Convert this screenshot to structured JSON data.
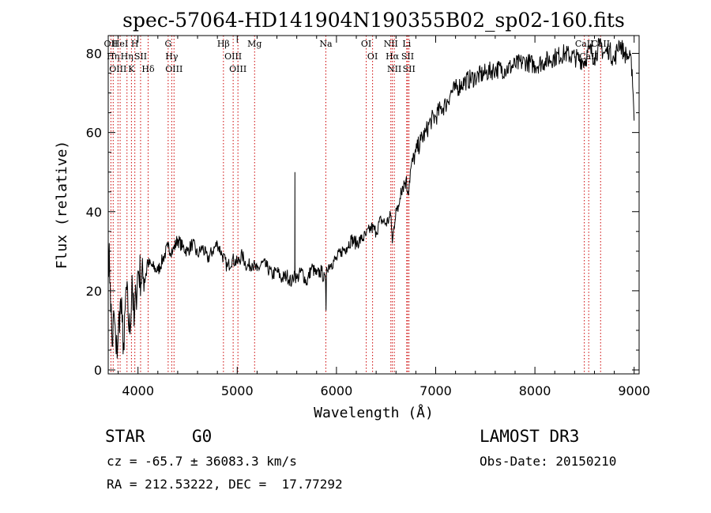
{
  "chart_data": {
    "type": "line",
    "title": "spec-57064-HD141904N190355B02_sp02-160.fits",
    "xlabel": "Wavelength (Å)",
    "ylabel": "Flux (relative)",
    "xlim": [
      3700,
      9050
    ],
    "ylim": [
      -1,
      84.5
    ],
    "xticks": [
      4000,
      5000,
      6000,
      7000,
      8000,
      9000
    ],
    "yticks": [
      0,
      20,
      40,
      60,
      80
    ],
    "series": [
      {
        "name": "spectrum",
        "x": [
          3700,
          3720,
          3740,
          3760,
          3780,
          3800,
          3820,
          3840,
          3860,
          3880,
          3900,
          3920,
          3940,
          3960,
          3980,
          4000,
          4050,
          4100,
          4150,
          4200,
          4250,
          4300,
          4350,
          4400,
          4450,
          4500,
          4550,
          4600,
          4650,
          4700,
          4750,
          4800,
          4850,
          4900,
          4950,
          5000,
          5050,
          5100,
          5150,
          5200,
          5250,
          5300,
          5350,
          5400,
          5450,
          5500,
          5550,
          5580,
          5581,
          5582,
          5583,
          5600,
          5650,
          5700,
          5750,
          5800,
          5850,
          5890,
          5895,
          5900,
          5950,
          6000,
          6050,
          6100,
          6150,
          6200,
          6250,
          6300,
          6350,
          6400,
          6450,
          6500,
          6550,
          6563,
          6600,
          6620,
          6650,
          6700,
          6720,
          6750,
          6800,
          6850,
          6900,
          6950,
          7000,
          7050,
          7100,
          7150,
          7200,
          7250,
          7300,
          7400,
          7500,
          7600,
          7700,
          7800,
          7900,
          8000,
          8100,
          8200,
          8300,
          8400,
          8500,
          8550,
          8600,
          8650,
          8700,
          8750,
          8800,
          8850,
          8900,
          8950,
          8980,
          9000
        ],
        "values": [
          32,
          22,
          6,
          14,
          4,
          8,
          17,
          12,
          5,
          21,
          14,
          9,
          24,
          11,
          19,
          25,
          23,
          27,
          26,
          25,
          28,
          31,
          30,
          33,
          31,
          30,
          32,
          29,
          31,
          28,
          30,
          32,
          29,
          26,
          28,
          27,
          29,
          26,
          27,
          25,
          27,
          26,
          24,
          25,
          23,
          24,
          22,
          25,
          50,
          27,
          24,
          23,
          25,
          22,
          26,
          24,
          25,
          22,
          15,
          26,
          27,
          28,
          30,
          31,
          33,
          32,
          33,
          34,
          36,
          35,
          38,
          37,
          39,
          32,
          41,
          40,
          46,
          48,
          45,
          51,
          55,
          58,
          60,
          63,
          64,
          66,
          67,
          70,
          71,
          72,
          73,
          74,
          75,
          76,
          76,
          77,
          78,
          77,
          78,
          79,
          80,
          79,
          78,
          81,
          79,
          82,
          80,
          81,
          78,
          83,
          80,
          79,
          76,
          63
        ]
      }
    ],
    "lines": [
      {
        "wl": 3727,
        "label": "OII"
      },
      {
        "wl": 3750,
        "label": "Hη"
      },
      {
        "wl": 3798,
        "label": "OIII"
      },
      {
        "wl": 3820,
        "label": "HeI"
      },
      {
        "wl": 3889,
        "label": "Hη"
      },
      {
        "wl": 3934,
        "label": "K"
      },
      {
        "wl": 3968,
        "label": "H"
      },
      {
        "wl": 4026,
        "label": "SII"
      },
      {
        "wl": 4102,
        "label": "Hδ"
      },
      {
        "wl": 4304,
        "label": "G"
      },
      {
        "wl": 4340,
        "label": "Hγ"
      },
      {
        "wl": 4363,
        "label": "OIII"
      },
      {
        "wl": 4861,
        "label": "Hβ"
      },
      {
        "wl": 4959,
        "label": "OIII"
      },
      {
        "wl": 5007,
        "label": "OIII"
      },
      {
        "wl": 5175,
        "label": "Mg"
      },
      {
        "wl": 5893,
        "label": "Na"
      },
      {
        "wl": 6300,
        "label": "OI"
      },
      {
        "wl": 6364,
        "label": "OI"
      },
      {
        "wl": 6548,
        "label": "NII"
      },
      {
        "wl": 6563,
        "label": "Hα"
      },
      {
        "wl": 6583,
        "label": "NII"
      },
      {
        "wl": 6708,
        "label": "Li"
      },
      {
        "wl": 6717,
        "label": "SII"
      },
      {
        "wl": 6731,
        "label": "SII"
      },
      {
        "wl": 8498,
        "label": "CaII"
      },
      {
        "wl": 8542,
        "label": "CaII"
      },
      {
        "wl": 8662,
        "label": "CaII"
      }
    ]
  },
  "footer": {
    "class_label": "STAR",
    "subclass_label": "G0",
    "survey": "LAMOST DR3",
    "cz": "cz = -65.7 ± 36083.3 km/s",
    "obs_date": "Obs-Date: 20150210",
    "coords": "RA = 212.53222, DEC =  17.77292"
  },
  "colors": {
    "spectrum": "#000000",
    "line_markers": "#cc0000",
    "axes": "#000000"
  }
}
